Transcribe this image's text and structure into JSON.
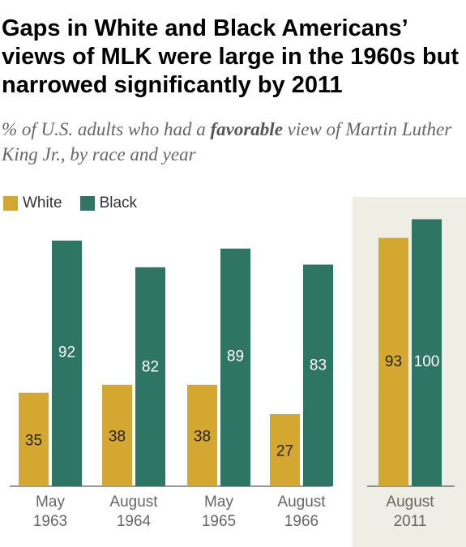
{
  "title": "Gaps in White and Black Americans’ views of MLK were large in the 1960s but narrowed significantly by 2011",
  "subtitle": {
    "pre": "% of U.S. adults who had a ",
    "emphasis": "favorable",
    "post": " view of Martin Luther King Jr., by race and year"
  },
  "legend": [
    {
      "label": "White",
      "color": "#d4a830"
    },
    {
      "label": "Black",
      "color": "#2e7566"
    }
  ],
  "chart_data": {
    "type": "bar",
    "categories": [
      [
        "May",
        "1963"
      ],
      [
        "August",
        "1964"
      ],
      [
        "May",
        "1965"
      ],
      [
        "August",
        "1966"
      ],
      [
        "August",
        "2011"
      ]
    ],
    "series": [
      {
        "name": "White",
        "color": "#d4a830",
        "values": [
          35,
          38,
          38,
          27,
          93
        ]
      },
      {
        "name": "Black",
        "color": "#2e7566",
        "values": [
          92,
          82,
          89,
          83,
          100
        ]
      }
    ],
    "highlight_category": 4,
    "highlight_color": "#efeee4",
    "ylim": [
      0,
      100
    ],
    "grid": false
  }
}
